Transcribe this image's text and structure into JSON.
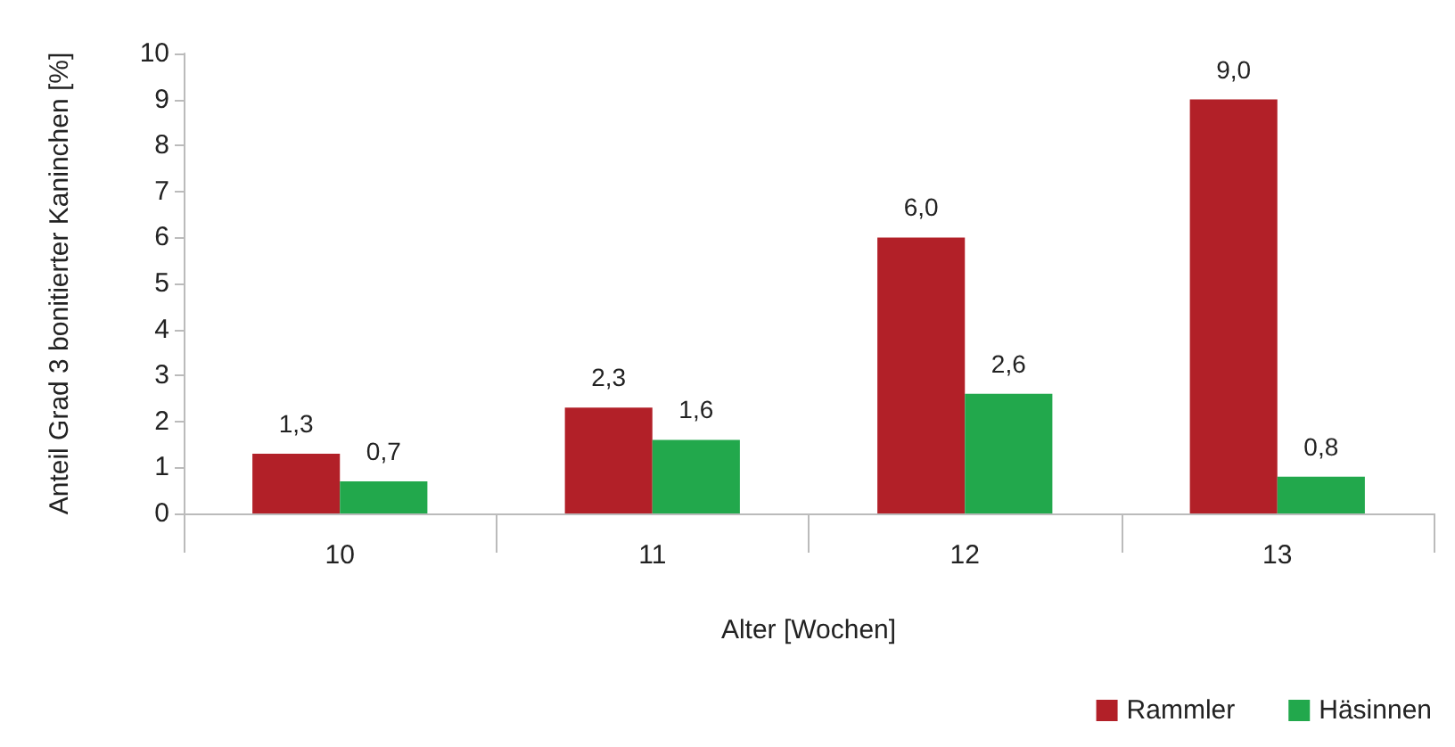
{
  "chart_data": {
    "type": "bar",
    "xlabel": "Alter [Wochen]",
    "ylabel": "Anteil Grad 3 bonitierter Kaninchen [%]",
    "categories": [
      "10",
      "11",
      "12",
      "13"
    ],
    "series": [
      {
        "name": "Rammler",
        "color": "#b22028",
        "values": [
          1.3,
          2.3,
          6.0,
          9.0
        ],
        "value_labels": [
          "1,3",
          "2,3",
          "6,0",
          "9,0"
        ]
      },
      {
        "name": "Häsinnen",
        "color": "#22a84c",
        "values": [
          0.7,
          1.6,
          2.6,
          0.8
        ],
        "value_labels": [
          "0,7",
          "1,6",
          "2,6",
          "0,8"
        ]
      }
    ],
    "ylim": [
      0,
      10
    ],
    "yticks": [
      0,
      1,
      2,
      3,
      4,
      5,
      6,
      7,
      8,
      9,
      10
    ],
    "grid": false,
    "legend": "bottom right"
  }
}
